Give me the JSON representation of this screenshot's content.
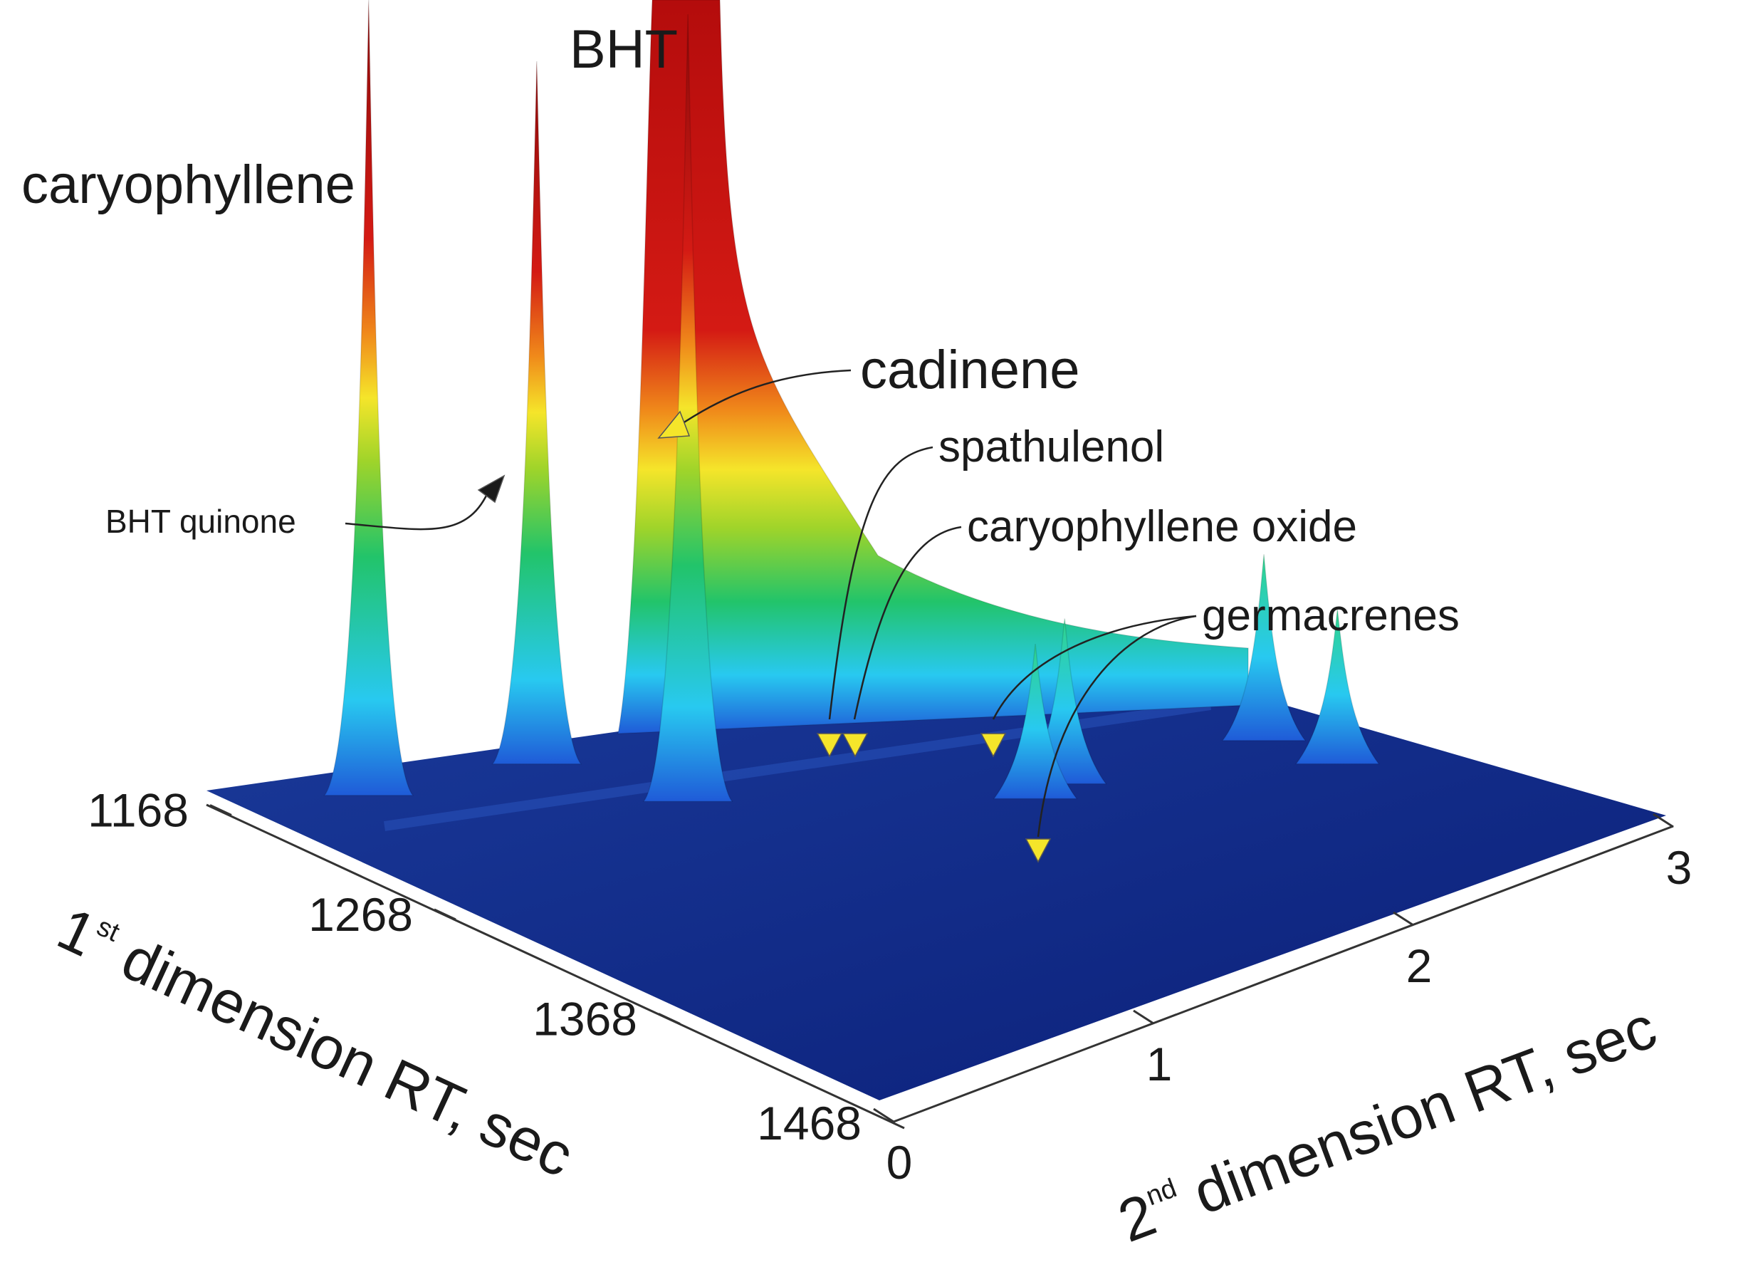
{
  "chart_data": {
    "type": "surface-3d",
    "title": "",
    "x_axis": {
      "label_parts": [
        "1",
        "st",
        " dimension RT, sec"
      ],
      "ticks": [
        "1168",
        "1268",
        "1368",
        "1468"
      ],
      "range": [
        1168,
        1468
      ]
    },
    "y_axis": {
      "label_parts": [
        "2",
        "nd",
        " dimension RT, sec"
      ],
      "ticks": [
        "0",
        "1",
        "2",
        "3"
      ],
      "range": [
        0,
        3
      ]
    },
    "z_axis": {
      "label": "",
      "range": [
        0,
        1
      ]
    },
    "colormap": [
      "#0b1f78",
      "#1f5bd8",
      "#28c9f0",
      "#22c46a",
      "#7fd12a",
      "#f5e52a",
      "#f08a1a",
      "#cc1414",
      "#8a0a0a"
    ],
    "peaks": [
      {
        "label": "caryophyllene",
        "rt1": 1195,
        "rt2": 0.35,
        "height": 0.82,
        "arrow": false
      },
      {
        "label": "BHT quinone",
        "rt1": 1212,
        "rt2": 0.85,
        "height": 0.66,
        "arrow": true
      },
      {
        "label": "BHT",
        "rt1": 1230,
        "rt2": 1.35,
        "height": 1.0,
        "arrow": false
      },
      {
        "label": "cadinene",
        "rt1": 1262,
        "rt2": 1.0,
        "height": 0.74,
        "arrow": true
      },
      {
        "label": "spathulenol",
        "rt1": 1330,
        "rt2": 1.75,
        "height": 0.14,
        "arrow": true
      },
      {
        "label": "caryophyllene oxide",
        "rt1": 1328,
        "rt2": 1.88,
        "height": 0.15,
        "arrow": true
      },
      {
        "label": "germacrenes",
        "rt1": 1345,
        "rt2": 2.5,
        "height": 0.17,
        "arrow": true
      },
      {
        "label": "germacrenes",
        "rt1": 1372,
        "rt2": 2.55,
        "height": 0.14,
        "arrow": true
      }
    ]
  }
}
